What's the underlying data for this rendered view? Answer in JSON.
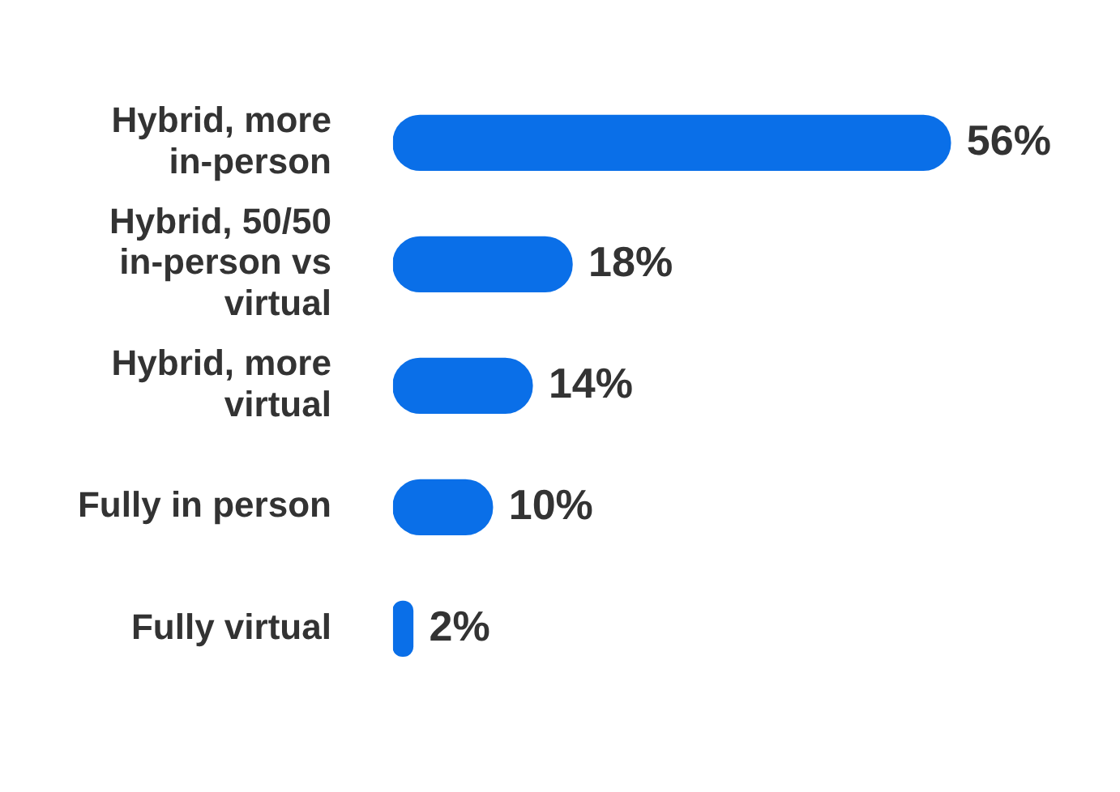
{
  "chart_data": {
    "type": "bar",
    "orientation": "horizontal",
    "categories": [
      "Hybrid, more in-person",
      "Hybrid, 50/50 in-person vs virtual",
      "Hybrid, more virtual",
      "Fully in person",
      "Fully virtual"
    ],
    "values": [
      56,
      18,
      14,
      10,
      2
    ],
    "color": "#0a6fe8",
    "value_labels": [
      "56%",
      "18%",
      "14%",
      "10%",
      "2%"
    ],
    "tick_labels": "y",
    "grid": false,
    "legend": false
  }
}
